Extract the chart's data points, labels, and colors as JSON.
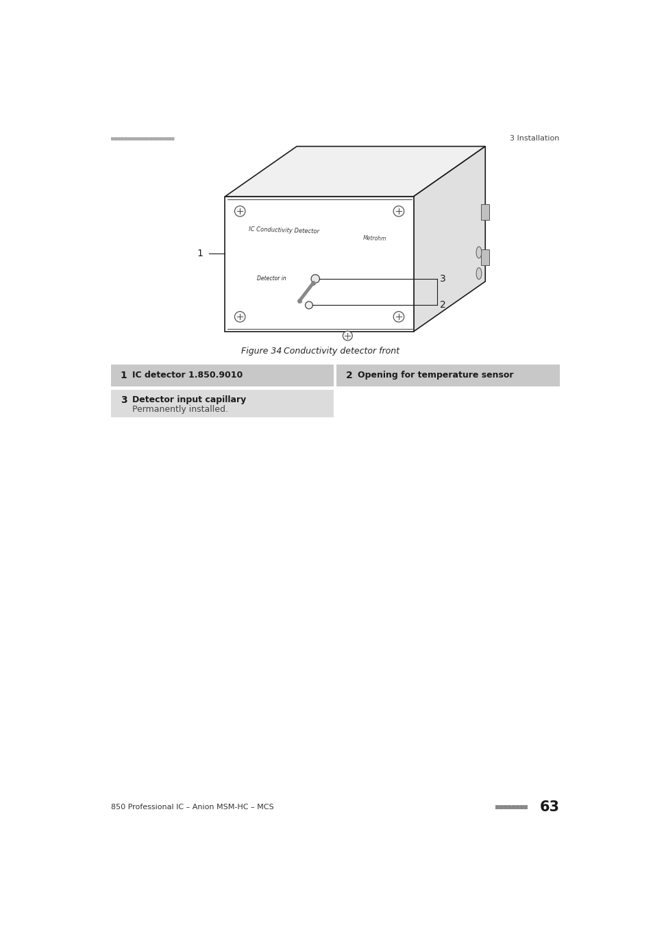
{
  "page_header_left_dots": "■■■■■■■■■■■■■■■■■■■■",
  "page_header_right": "3 Installation",
  "figure_caption_bold": "Figure 34",
  "figure_caption_italic": "Conductivity detector front",
  "label1": "1",
  "label2": "2",
  "label3": "3",
  "text_ic": "IC Conductivity Detector",
  "text_metrohm": "Metrohm",
  "text_detector_in": "Detector in",
  "item1_num": "1",
  "item1_bold": "IC detector 1.850.9010",
  "item2_num": "2",
  "item2_bold": "Opening for temperature sensor",
  "item3_num": "3",
  "item3_bold": "Detector input capillary",
  "item3_sub": "Permanently installed.",
  "footer_left": "850 Professional IC – Anion MSM-HC – MCS",
  "footer_page": "63",
  "footer_dots": "■■■■■■■■",
  "bg_color": "#ffffff",
  "line_color": "#1a1a1a",
  "table_row1_color": "#c8c8c8",
  "table_row2_color": "#dcdcdc",
  "header_dot_color": "#aaaaaa",
  "box_face_color": "#ffffff",
  "box_top_color": "#f0f0f0",
  "box_right_color": "#e0e0e0"
}
